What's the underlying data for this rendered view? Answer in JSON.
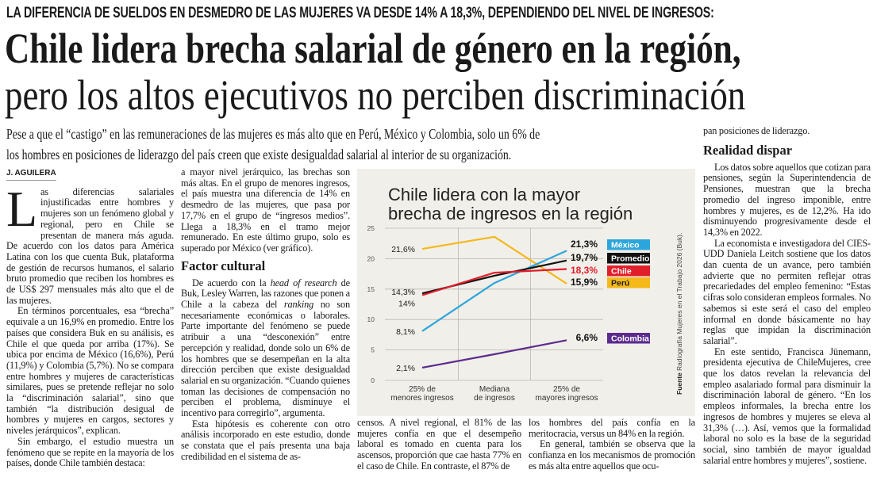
{
  "kicker": "LA DIFERENCIA DE SUELDOS EN DESMEDRO DE LAS MUJERES VA DESDE 14% A 18,3%, DEPENDIENDO DEL NIVEL DE INGRESOS:",
  "headline": {
    "line1": "Chile lidera brecha salarial de género en la región,",
    "line2": "pero los altos ejecutivos no perciben discriminación"
  },
  "deck": {
    "line1": "Pese a que el “castigo” en las remuneraciones de las mujeres es más alto que en Perú, México y Colombia, solo un 6% de",
    "line2": "los hombres en posiciones de liderazgo del país creen que existe desigualdad salarial al interior de su organización."
  },
  "byline": "J. AGUILERA",
  "columns": {
    "col1": {
      "dropcap": "L",
      "p1": "as diferencias salariales injustificadas entre hombres y mujeres son un fenómeno global y regional, pero en Chile se presentan de manera más aguda. De acuerdo con los datos para América Latina con los que cuenta Buk, plataforma de gestión de recursos humanos, el salario bruto promedio que reciben los hombres es de US$ 297 mensuales más alto que el de las mujeres.",
      "p2": "En términos porcentuales, esa “brecha” equivale a un 16,9% en promedio. Entre los países que considera Buk en su análisis, es Chile el que queda por arriba (17%). Se ubica por encima de México (16,6%), Perú (11,9%) y Colombia (5,7%). No se compara entre hombres y mujeres de características similares, pues se pretende reflejar no solo la “discriminación salarial”, sino que también “la distribución desigual de hombres y mujeres en cargos, sectores y niveles jerárquicos”, explican.",
      "p3": "Sin embargo, el estudio muestra un fenómeno que se repite en la mayoría de los países, donde Chile también destaca:"
    },
    "col2": {
      "p1": "a mayor nivel jerárquico, las brechas son más altas. En el grupo de menores ingresos, el país muestra una diferencia de 14% en desmedro de las mujeres, que pasa por 17,7% en el grupo de “ingresos medios”. Llega a 18,3% en el tramo mejor remunerado. En este último grupo, solo es superado por México (ver gráfico).",
      "heading": "Factor cultural",
      "p2_a": "De acuerdo con la ",
      "p2_i1": "head of research",
      "p2_b": " de Buk, Lesley Warren, las razones que ponen a Chile a la cabeza del ",
      "p2_i2": "ranking",
      "p2_c": " no son necesariamente económicas o laborales. Parte importante del fenómeno se puede atribuir a una “desconexión” entre percepción y realidad, donde solo un 6% de los hombres que se desempeñan en la alta dirección perciben que existe desigualdad salarial en su organización. “Cuando quienes toman las decisiones de compensación no perciben el problema, disminuye el incentivo para corregirlo”, argumenta.",
      "p3": "Esta hipótesis es coherente con otro análisis incorporado en este estudio, donde se constata que el país presenta una baja credibilidad en el sistema de as-"
    },
    "col3": {
      "p1": "censos. A nivel regional, el 81% de las mujeres confía en que el desempeño laboral es tomado en cuenta para los ascensos, proporción que cae hasta 77% en el caso de Chile. En contraste, el 87% de"
    },
    "col3b": {
      "p1": "los hombres del país confía en la meritocracia, versus un 84% en la región.",
      "p2": "En general, también se observa que la confianza en los mecanismos de promoción es más alta entre aquellos que ocu-"
    },
    "col4": {
      "p0": "pan posiciones de liderazgo.",
      "heading": "Realidad dispar",
      "p1": "Los datos sobre aquellos que cotizan para pensiones, según la Superintendencia de Pensiones, muestran que la brecha promedio del ingreso imponible, entre hombres y mujeres, es de 12,2%. Ha ido disminuyendo progresivamente desde el 14,3% en 2022.",
      "p2": "La economista e investigadora del CIES-UDD Daniela Leitch sostiene que los datos dan cuenta de un avance, pero también advierte que no permiten reflejar otras precariedades del empleo femenino: “Estas cifras solo consideran empleos formales. No sabemos si este será el caso del empleo informal en donde básicamente no hay reglas que impidan la discriminación salarial”.",
      "p3": "En este sentido, Francisca Jünemann, presidenta ejecutiva de ChileMujeres, cree que los datos revelan la relevancia del empleo asalariado formal para disminuir la discriminación laboral de género. “En los empleos informales, la brecha entre los ingresos de hombres y mujeres se eleva al 31,3% (…). Así, vemos que la formalidad laboral no solo es la base de la seguridad social, sino también de mayor igualdad salarial entre hombres y mujeres”, sostiene."
    }
  },
  "chart_data": {
    "type": "line",
    "title_line1": "Chile lidera con la mayor",
    "title_line2": "brecha de ingresos en la región",
    "categories": [
      [
        "25% de",
        "menores ingresos"
      ],
      [
        "Mediana",
        "de ingresos"
      ],
      [
        "25% de",
        "mayores ingresos"
      ]
    ],
    "ylim": [
      0,
      25
    ],
    "yticks": [
      "0",
      "5",
      "10",
      "15",
      "20",
      "25"
    ],
    "grid": true,
    "legend_placement": "right",
    "source_label": "Fuente",
    "source_text": "Radiografía Mujeres en el Trabajo 2026 (Buk).",
    "series": [
      {
        "name": "México",
        "color": "#2ba6dc",
        "values": [
          8.1,
          16.0,
          21.3
        ],
        "start_label": "8,1%",
        "end_label": "21,3%"
      },
      {
        "name": "Promedio",
        "color": "#111111",
        "values": [
          14.3,
          17.2,
          19.7
        ],
        "start_label": "14,3%",
        "end_label": "19,7%"
      },
      {
        "name": "Chile",
        "color": "#e31e2b",
        "values": [
          14.0,
          17.7,
          18.3
        ],
        "start_label": "14%",
        "end_label": "18,3%"
      },
      {
        "name": "Perú",
        "color": "#f4b819",
        "values": [
          21.6,
          23.6,
          15.9
        ],
        "start_label": "21,6%",
        "end_label": "15,9%"
      },
      {
        "name": "Colombia",
        "color": "#5b2b8f",
        "values": [
          2.1,
          4.3,
          6.6
        ],
        "start_label": "2,1%",
        "end_label": "6,6%"
      }
    ]
  }
}
